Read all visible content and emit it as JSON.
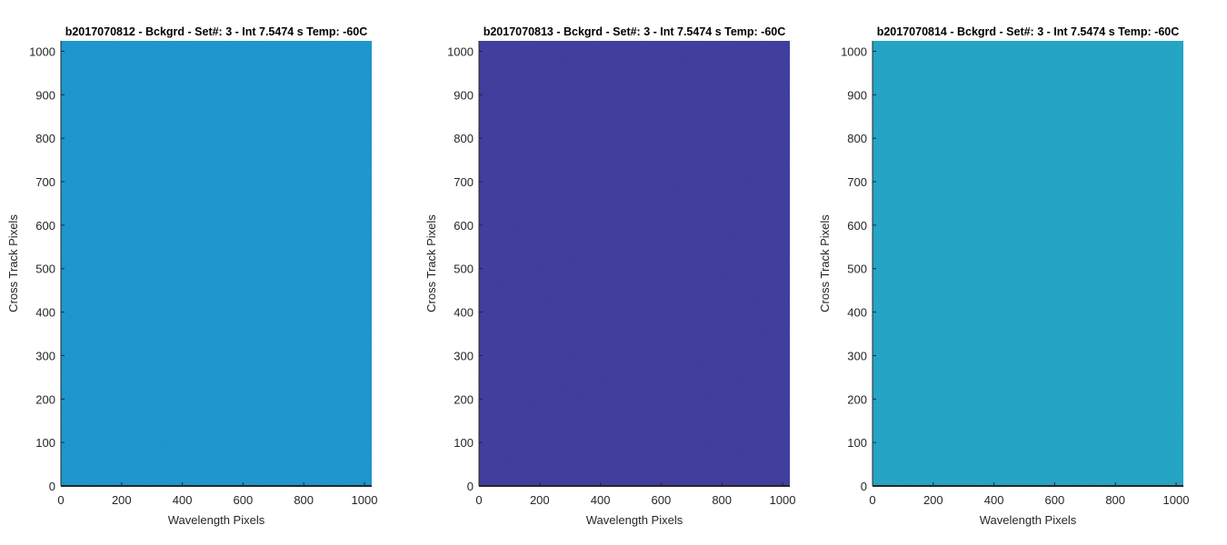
{
  "chart_data": [
    {
      "type": "heatmap",
      "title": "b2017070812 - Bckgrd - Set#: 3 - Int 7.5474 s Temp: -60C",
      "xlabel": "Wavelength Pixels",
      "ylabel": "Cross Track Pixels",
      "xlim": [
        0,
        1024
      ],
      "ylim": [
        0,
        1024
      ],
      "xticks": [
        0,
        200,
        400,
        600,
        800,
        1000
      ],
      "yticks": [
        0,
        100,
        200,
        300,
        400,
        500,
        600,
        700,
        800,
        900,
        1000
      ],
      "grid": false,
      "fill_color": "#0f93cf",
      "noise_color": "#2aa6c6"
    },
    {
      "type": "heatmap",
      "title": "b2017070813 - Bckgrd - Set#: 3 - Int 7.5474 s Temp: -60C",
      "xlabel": "Wavelength Pixels",
      "ylabel": "Cross Track Pixels",
      "xlim": [
        0,
        1024
      ],
      "ylim": [
        0,
        1024
      ],
      "xticks": [
        0,
        200,
        400,
        600,
        800,
        1000
      ],
      "yticks": [
        0,
        100,
        200,
        300,
        400,
        500,
        600,
        700,
        800,
        900,
        1000
      ],
      "grid": false,
      "fill_color": "#35329a",
      "noise_color": "#3a3ea6"
    },
    {
      "type": "heatmap",
      "title": "b2017070814 - Bckgrd - Set#: 3 - Int 7.5474 s Temp: -60C",
      "xlabel": "Wavelength Pixels",
      "ylabel": "Cross Track Pixels",
      "xlim": [
        0,
        1024
      ],
      "ylim": [
        0,
        1024
      ],
      "xticks": [
        0,
        200,
        400,
        600,
        800,
        1000
      ],
      "yticks": [
        0,
        100,
        200,
        300,
        400,
        500,
        600,
        700,
        800,
        900,
        1000
      ],
      "grid": false,
      "fill_color": "#16a2c4",
      "noise_color": "#2fb7b4"
    }
  ]
}
